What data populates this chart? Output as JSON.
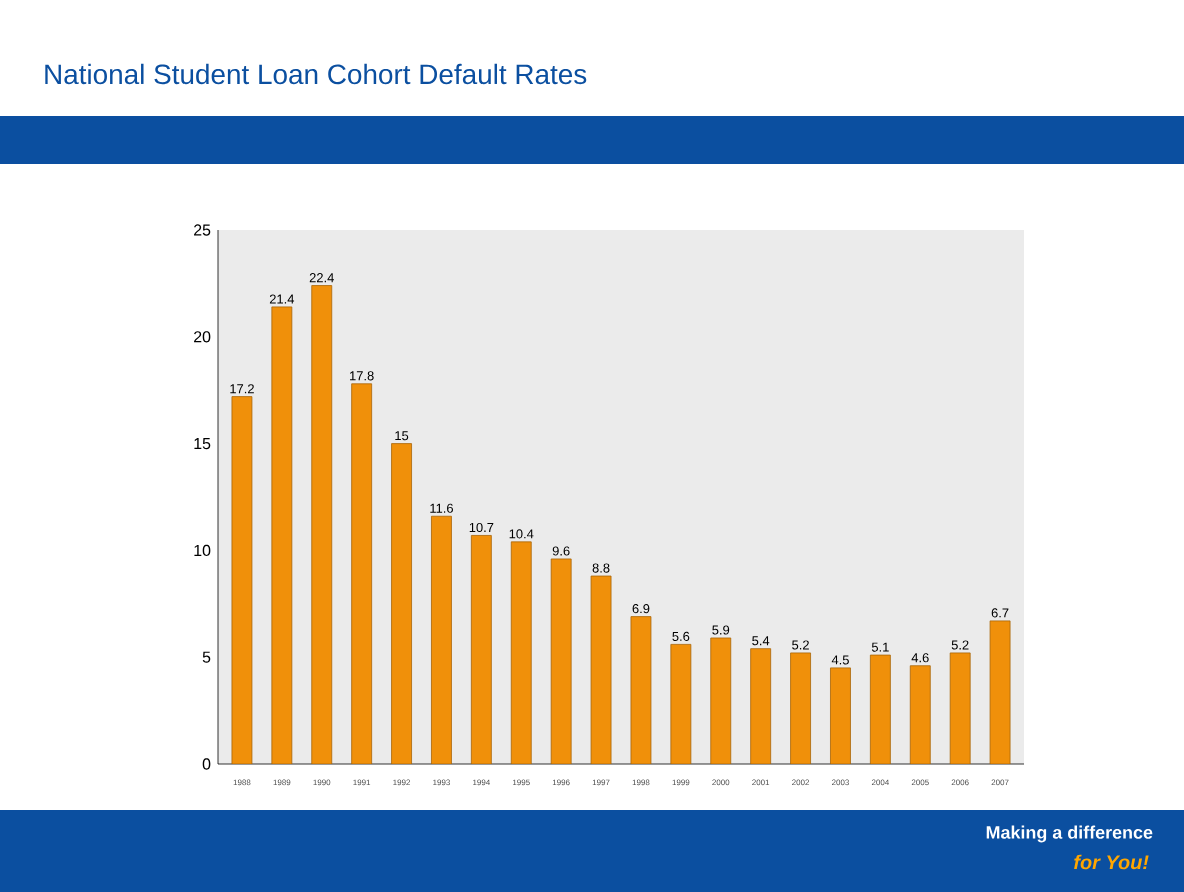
{
  "chart_data": {
    "type": "bar",
    "title": "National Student Loan Cohort Default Rates",
    "categories": [
      "1988",
      "1989",
      "1990",
      "1991",
      "1992",
      "1993",
      "1994",
      "1995",
      "1996",
      "1997",
      "1998",
      "1999",
      "2000",
      "2001",
      "2002",
      "2003",
      "2004",
      "2005",
      "2006",
      "2007"
    ],
    "values": [
      17.2,
      21.4,
      22.4,
      17.8,
      15,
      11.6,
      10.7,
      10.4,
      9.6,
      8.8,
      6.9,
      5.6,
      5.9,
      5.4,
      5.2,
      4.5,
      5.1,
      4.6,
      5.2,
      6.7
    ],
    "color": "#f0900a",
    "ylim": [
      0,
      25
    ],
    "yticks": [
      0,
      5,
      10,
      15,
      20,
      25
    ],
    "data_labels": true,
    "grid": false,
    "annotations": [
      "Making a difference",
      "for You!"
    ]
  }
}
